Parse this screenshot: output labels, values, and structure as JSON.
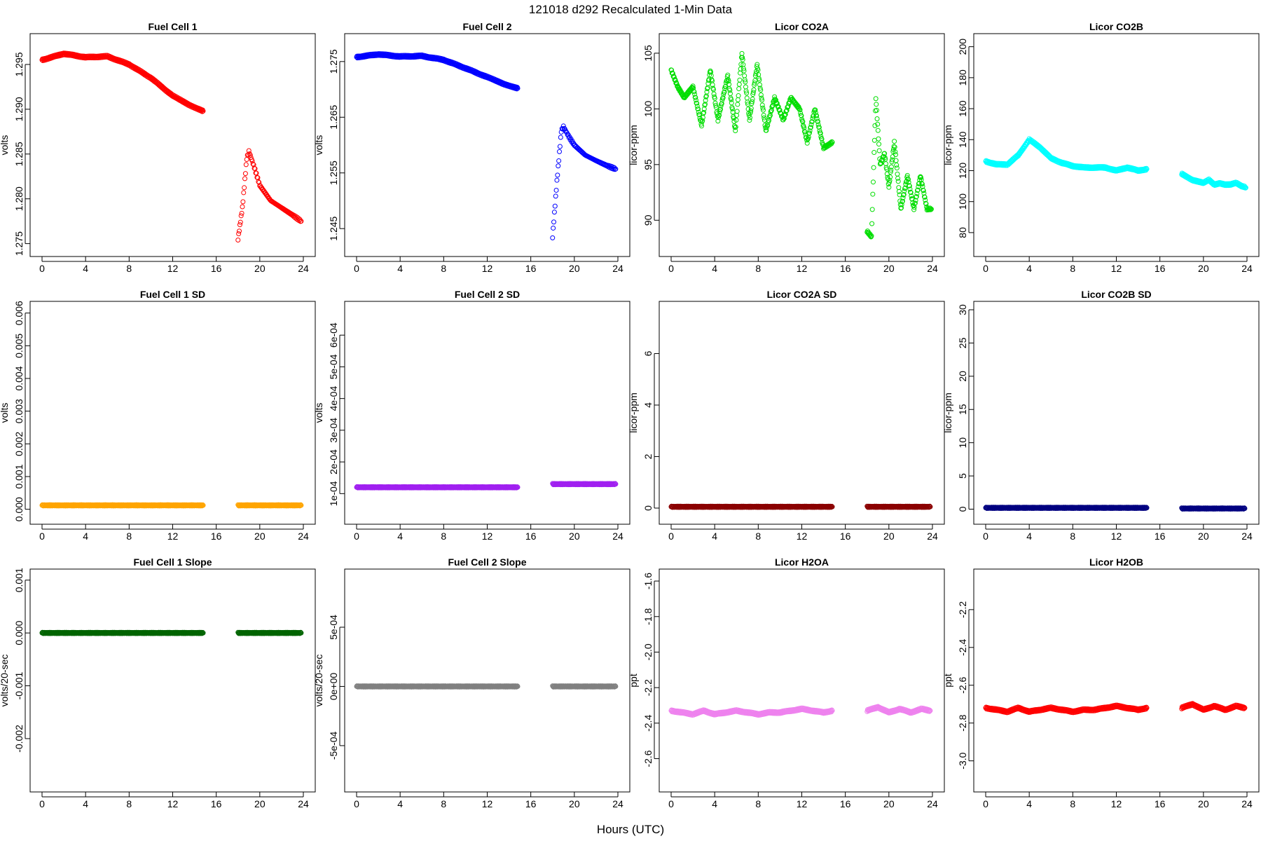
{
  "title": "121018   d292   Recalculated 1-Min Data",
  "xlabel": "Hours (UTC)",
  "chart_data": [
    {
      "type": "scatter",
      "title": "Fuel Cell 1",
      "ylabel": "volts",
      "color": "#ff0000",
      "xlim": [
        0,
        24
      ],
      "ylim": [
        1.2745,
        1.2975
      ],
      "xticks": [
        "0",
        "4",
        "8",
        "12",
        "16",
        "20",
        "24"
      ],
      "yticks": [
        {
          "v": 1.275,
          "label": "1.275"
        },
        {
          "v": 1.28,
          "label": "1.280"
        },
        {
          "v": 1.285,
          "label": "1.285"
        },
        {
          "v": 1.29,
          "label": "1.290"
        },
        {
          "v": 1.295,
          "label": "1.295"
        }
      ],
      "series": [
        {
          "x": [
            0,
            2,
            4,
            6,
            8,
            10,
            12,
            13.5,
            14.8
          ],
          "y": [
            1.2955,
            1.2962,
            1.2958,
            1.2959,
            1.295,
            1.2935,
            1.2915,
            1.2905,
            1.2898
          ],
          "density": "heavy"
        },
        {
          "x": [
            18,
            18.4,
            18.8,
            19,
            19.5,
            20,
            21,
            22,
            23,
            23.8
          ],
          "y": [
            1.2755,
            1.279,
            1.2845,
            1.2853,
            1.2835,
            1.2815,
            1.2798,
            1.279,
            1.2782,
            1.2775
          ],
          "density": "light"
        }
      ]
    },
    {
      "type": "scatter",
      "title": "Fuel Cell 2",
      "ylabel": "volts",
      "color": "#0000ff",
      "xlim": [
        0,
        24
      ],
      "ylim": [
        1.2415,
        1.2785
      ],
      "xticks": [
        "0",
        "4",
        "8",
        "12",
        "16",
        "20",
        "24"
      ],
      "yticks": [
        {
          "v": 1.245,
          "label": "1.245"
        },
        {
          "v": 1.255,
          "label": "1.255"
        },
        {
          "v": 1.265,
          "label": "1.265"
        },
        {
          "v": 1.275,
          "label": "1.275"
        }
      ],
      "series": [
        {
          "x": [
            0,
            2,
            4,
            6,
            8,
            10,
            12,
            13.5,
            14.8
          ],
          "y": [
            1.2758,
            1.2763,
            1.2759,
            1.276,
            1.2753,
            1.2738,
            1.2722,
            1.271,
            1.2702
          ],
          "density": "heavy"
        },
        {
          "x": [
            18,
            18.4,
            18.8,
            19,
            19.5,
            20,
            21,
            22,
            23,
            23.8
          ],
          "y": [
            1.2435,
            1.2535,
            1.2625,
            1.2633,
            1.2615,
            1.26,
            1.2582,
            1.2572,
            1.2563,
            1.2557
          ],
          "density": "light"
        }
      ]
    },
    {
      "type": "scatter",
      "title": "Licor CO2A",
      "ylabel": "licor-ppm",
      "color": "#00dd00",
      "xlim": [
        0,
        24
      ],
      "ylim": [
        87.5,
        106
      ],
      "xticks": [
        "0",
        "4",
        "8",
        "12",
        "16",
        "20",
        "24"
      ],
      "yticks": [
        {
          "v": 90,
          "label": "90"
        },
        {
          "v": 95,
          "label": "95"
        },
        {
          "v": 100,
          "label": "100"
        },
        {
          "v": 105,
          "label": "105"
        }
      ],
      "series": [
        {
          "x": [
            0,
            0.6,
            1.2,
            2,
            2.8,
            3.6,
            4.3,
            5.2,
            5.9,
            6.5,
            7.2,
            7.9,
            8.7,
            9.5,
            10.3,
            11,
            11.8,
            12.5,
            13.2,
            14,
            14.8
          ],
          "y": [
            103.5,
            102,
            101,
            102,
            98.5,
            103.5,
            99,
            103,
            98,
            105,
            99,
            104,
            98,
            101,
            99,
            101,
            100,
            97,
            100,
            96.5,
            97
          ],
          "density": "heavy"
        },
        {
          "x": [
            18,
            18.4,
            18.8,
            19.2,
            19.6,
            20,
            20.5,
            21.1,
            21.7,
            22.3,
            22.9,
            23.5,
            23.9
          ],
          "y": [
            89,
            88.5,
            101,
            95,
            96,
            93,
            97,
            91,
            94,
            91,
            94,
            91,
            91
          ],
          "density": "heavy"
        }
      ]
    },
    {
      "type": "scatter",
      "title": "Licor CO2B",
      "ylabel": "licor-ppm",
      "color": "#00ffff",
      "xlim": [
        0,
        24
      ],
      "ylim": [
        70,
        203
      ],
      "xticks": [
        "0",
        "4",
        "8",
        "12",
        "16",
        "20",
        "24"
      ],
      "yticks": [
        {
          "v": 80,
          "label": "80"
        },
        {
          "v": 100,
          "label": "100"
        },
        {
          "v": 120,
          "label": "120"
        },
        {
          "v": 140,
          "label": "140"
        },
        {
          "v": 160,
          "label": "160"
        },
        {
          "v": 180,
          "label": "180"
        },
        {
          "v": 200,
          "label": "200"
        }
      ],
      "series": [
        {
          "x": [
            0,
            1,
            2,
            3,
            4,
            5,
            6,
            7,
            8,
            9,
            10,
            11,
            12,
            13,
            14,
            14.8
          ],
          "y": [
            126,
            124,
            124,
            130,
            140,
            135,
            128,
            125,
            123,
            122,
            122,
            122,
            120,
            122,
            120,
            121
          ],
          "density": "heavy"
        },
        {
          "x": [
            18,
            18.5,
            19,
            19.5,
            20,
            20.5,
            21,
            21.5,
            22,
            22.5,
            23,
            23.5,
            23.9
          ],
          "y": [
            118,
            116,
            114,
            113,
            112,
            114,
            111,
            112,
            111,
            111,
            112,
            110,
            109
          ],
          "density": "heavy"
        }
      ]
    },
    {
      "type": "scatter",
      "title": "Fuel Cell 1 SD",
      "ylabel": "volts",
      "color": "#ffa500",
      "xlim": [
        0,
        24
      ],
      "ylim": [
        -0.0002,
        0.0061
      ],
      "xticks": [
        "0",
        "4",
        "8",
        "12",
        "16",
        "20",
        "24"
      ],
      "yticks": [
        {
          "v": 0,
          "label": "0.000"
        },
        {
          "v": 0.001,
          "label": "0.001"
        },
        {
          "v": 0.002,
          "label": "0.002"
        },
        {
          "v": 0.003,
          "label": "0.003"
        },
        {
          "v": 0.004,
          "label": "0.004"
        },
        {
          "v": 0.005,
          "label": "0.005"
        },
        {
          "v": 0.006,
          "label": "0.006"
        }
      ],
      "series": [
        {
          "x": [
            0,
            14.8
          ],
          "y": [
            0.00012,
            0.00012
          ],
          "density": "band"
        },
        {
          "x": [
            18,
            23.8
          ],
          "y": [
            0.00012,
            0.00012
          ],
          "density": "band"
        }
      ]
    },
    {
      "type": "scatter",
      "title": "Fuel Cell 2 SD",
      "ylabel": "volts",
      "color": "#a020f0",
      "xlim": [
        0,
        24
      ],
      "ylim": [
        3e-05,
        0.00068
      ],
      "xticks": [
        "0",
        "4",
        "8",
        "12",
        "16",
        "20",
        "24"
      ],
      "yticks": [
        {
          "v": 0.0001,
          "label": "1e-04"
        },
        {
          "v": 0.0002,
          "label": "2e-04"
        },
        {
          "v": 0.0003,
          "label": "3e-04"
        },
        {
          "v": 0.0004,
          "label": "4e-04"
        },
        {
          "v": 0.0005,
          "label": "5e-04"
        },
        {
          "v": 0.0006,
          "label": "6e-04"
        }
      ],
      "series": [
        {
          "x": [
            0,
            14.8
          ],
          "y": [
            0.00012,
            0.00012
          ],
          "density": "band"
        },
        {
          "x": [
            18,
            23.8
          ],
          "y": [
            0.00013,
            0.00013
          ],
          "density": "band"
        }
      ]
    },
    {
      "type": "scatter",
      "title": "Licor CO2A SD",
      "ylabel": "licor-ppm",
      "color": "#8b0000",
      "xlim": [
        0,
        24
      ],
      "ylim": [
        -0.3,
        7.7
      ],
      "xticks": [
        "0",
        "4",
        "8",
        "12",
        "16",
        "20",
        "24"
      ],
      "yticks": [
        {
          "v": 0,
          "label": "0"
        },
        {
          "v": 2,
          "label": "2"
        },
        {
          "v": 4,
          "label": "4"
        },
        {
          "v": 6,
          "label": "6"
        }
      ],
      "series": [
        {
          "x": [
            0,
            14.8
          ],
          "y": [
            0.05,
            0.05
          ],
          "density": "band"
        },
        {
          "x": [
            18,
            23.8
          ],
          "y": [
            0.05,
            0.05
          ],
          "density": "band"
        }
      ]
    },
    {
      "type": "scatter",
      "title": "Licor CO2B SD",
      "ylabel": "licor-ppm",
      "color": "#000080",
      "xlim": [
        0,
        24
      ],
      "ylim": [
        -1,
        30
      ],
      "xticks": [
        "0",
        "4",
        "8",
        "12",
        "16",
        "20",
        "24"
      ],
      "yticks": [
        {
          "v": 0,
          "label": "0"
        },
        {
          "v": 5,
          "label": "5"
        },
        {
          "v": 10,
          "label": "10"
        },
        {
          "v": 15,
          "label": "15"
        },
        {
          "v": 20,
          "label": "20"
        },
        {
          "v": 25,
          "label": "25"
        },
        {
          "v": 30,
          "label": "30"
        }
      ],
      "series": [
        {
          "x": [
            0,
            14.8
          ],
          "y": [
            0.2,
            0.2
          ],
          "density": "band"
        },
        {
          "x": [
            18,
            23.8
          ],
          "y": [
            0.1,
            0.1
          ],
          "density": "band"
        }
      ]
    },
    {
      "type": "scatter",
      "title": "Fuel Cell 1 Slope",
      "ylabel": "volts/20-sec",
      "color": "#006400",
      "xlim": [
        0,
        24
      ],
      "ylim": [
        -0.00285,
        0.00105
      ],
      "xticks": [
        "0",
        "4",
        "8",
        "12",
        "16",
        "20",
        "24"
      ],
      "yticks": [
        {
          "v": -0.002,
          "label": "-0.002"
        },
        {
          "v": -0.001,
          "label": "-0.001"
        },
        {
          "v": 0,
          "label": "0.000"
        },
        {
          "v": 0.001,
          "label": "0.001"
        }
      ],
      "series": [
        {
          "x": [
            0,
            14.8
          ],
          "y": [
            0,
            0
          ],
          "density": "band"
        },
        {
          "x": [
            18,
            23.8
          ],
          "y": [
            0,
            0
          ],
          "density": "band"
        }
      ]
    },
    {
      "type": "scatter",
      "title": "Fuel Cell 2 Slope",
      "ylabel": "volts/20-sec",
      "color": "#808080",
      "xlim": [
        0,
        24
      ],
      "ylim": [
        -0.00082,
        0.00092
      ],
      "xticks": [
        "0",
        "4",
        "8",
        "12",
        "16",
        "20",
        "24"
      ],
      "yticks": [
        {
          "v": -0.0005,
          "label": "-5e-04"
        },
        {
          "v": 0,
          "label": "0e+00"
        },
        {
          "v": 0.0005,
          "label": "5e-04"
        }
      ],
      "series": [
        {
          "x": [
            0,
            14.8
          ],
          "y": [
            0,
            0
          ],
          "density": "band"
        },
        {
          "x": [
            18,
            23.8
          ],
          "y": [
            0,
            0
          ],
          "density": "band"
        }
      ]
    },
    {
      "type": "scatter",
      "title": "Licor H2OA",
      "ylabel": "ppt",
      "color": "#ee82ee",
      "xlim": [
        0,
        24
      ],
      "ylim": [
        -2.74,
        -1.58
      ],
      "xticks": [
        "0",
        "4",
        "8",
        "12",
        "16",
        "20",
        "24"
      ],
      "yticks": [
        {
          "v": -2.6,
          "label": "-2.6"
        },
        {
          "v": -2.4,
          "label": "-2.4"
        },
        {
          "v": -2.2,
          "label": "-2.2"
        },
        {
          "v": -2.0,
          "label": "-2.0"
        },
        {
          "v": -1.8,
          "label": "-1.8"
        },
        {
          "v": -1.6,
          "label": "-1.6"
        }
      ],
      "series": [
        {
          "x": [
            0,
            1,
            2,
            3,
            4,
            5,
            6,
            7,
            8,
            9,
            10,
            11,
            12,
            13,
            14,
            14.8
          ],
          "y": [
            -2.33,
            -2.34,
            -2.35,
            -2.33,
            -2.35,
            -2.34,
            -2.33,
            -2.34,
            -2.35,
            -2.34,
            -2.34,
            -2.33,
            -2.32,
            -2.33,
            -2.34,
            -2.33
          ],
          "density": "heavy"
        },
        {
          "x": [
            18,
            19,
            20,
            21,
            22,
            23,
            23.8
          ],
          "y": [
            -2.33,
            -2.31,
            -2.34,
            -2.32,
            -2.34,
            -2.32,
            -2.33
          ],
          "density": "heavy"
        }
      ]
    },
    {
      "type": "scatter",
      "title": "Licor H2OB",
      "ylabel": "ppt",
      "color": "#ff0000",
      "xlim": [
        0,
        24
      ],
      "ylim": [
        -3.12,
        -2.03
      ],
      "xticks": [
        "0",
        "4",
        "8",
        "12",
        "16",
        "20",
        "24"
      ],
      "yticks": [
        {
          "v": -3.0,
          "label": "-3.0"
        },
        {
          "v": -2.8,
          "label": "-2.8"
        },
        {
          "v": -2.6,
          "label": "-2.6"
        },
        {
          "v": -2.4,
          "label": "-2.4"
        },
        {
          "v": -2.2,
          "label": "-2.2"
        }
      ],
      "series": [
        {
          "x": [
            0,
            1,
            2,
            3,
            4,
            5,
            6,
            7,
            8,
            9,
            10,
            11,
            12,
            13,
            14,
            14.8
          ],
          "y": [
            -2.72,
            -2.73,
            -2.74,
            -2.72,
            -2.74,
            -2.73,
            -2.72,
            -2.73,
            -2.74,
            -2.73,
            -2.73,
            -2.72,
            -2.71,
            -2.72,
            -2.73,
            -2.72
          ],
          "density": "heavy"
        },
        {
          "x": [
            18,
            19,
            20,
            21,
            22,
            23,
            23.8
          ],
          "y": [
            -2.72,
            -2.7,
            -2.73,
            -2.71,
            -2.73,
            -2.71,
            -2.72
          ],
          "density": "heavy"
        }
      ]
    }
  ]
}
